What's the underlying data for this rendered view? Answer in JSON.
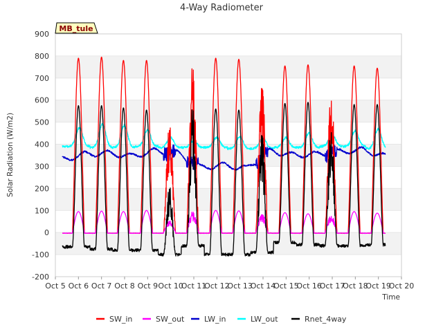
{
  "chart_data": {
    "type": "line",
    "title": "4-Way Radiometer",
    "xlabel": "Time",
    "ylabel": "Solar Radiation (W/m2)",
    "ylim": [
      -200,
      900
    ],
    "xlim": [
      5,
      20
    ],
    "yticks": [
      -200,
      -100,
      0,
      100,
      200,
      300,
      400,
      500,
      600,
      700,
      800,
      900
    ],
    "xticks": [
      5,
      6,
      7,
      8,
      9,
      10,
      11,
      12,
      13,
      14,
      15,
      16,
      17,
      18,
      19,
      20
    ],
    "xtick_labels": [
      "Oct 5",
      "Oct 6",
      "Oct 7",
      "Oct 8",
      "Oct 9",
      "Oct 10",
      "Oct 11",
      "Oct 12",
      "Oct 13",
      "Oct 14",
      "Oct 15",
      "Oct 16",
      "Oct 17",
      "Oct 18",
      "Oct 19",
      "Oct 20"
    ],
    "site_label": "MB_tule",
    "legend_position": "bottom-center",
    "data_start_day": 5.3,
    "data_end_day": 19.3,
    "daily_peak_days": [
      6.0,
      7.0,
      7.95,
      8.95,
      9.95,
      10.95,
      11.95,
      12.95,
      13.95,
      14.95,
      15.95,
      16.95,
      17.95,
      18.95
    ],
    "series": [
      {
        "name": "SW_in",
        "color": "#ff0000",
        "night": -3,
        "daily_peaks": [
          790,
          795,
          780,
          780,
          500,
          760,
          790,
          785,
          690,
          755,
          760,
          650,
          755,
          745
        ]
      },
      {
        "name": "SW_out",
        "color": "#ff00ff",
        "night": -3,
        "daily_peaks": [
          95,
          97,
          95,
          100,
          55,
          95,
          100,
          98,
          85,
          90,
          85,
          80,
          95,
          88
        ]
      },
      {
        "name": "LW_in",
        "color": "#0000cd",
        "baseline": [
          330,
          355,
          360,
          345,
          370,
          360,
          295,
          305,
          290,
          370,
          350,
          355,
          365,
          375,
          345
        ]
      },
      {
        "name": "LW_out",
        "color": "#00ffff",
        "baseline": [
          390,
          385,
          385,
          390,
          385,
          385,
          385,
          380,
          380,
          385,
          385,
          390,
          390,
          380,
          390
        ],
        "daily_peaks": [
          475,
          490,
          485,
          465,
          430,
          415,
          430,
          435,
          430,
          430,
          450,
          445,
          460,
          470
        ]
      },
      {
        "name": "Rnet_4way",
        "color": "#000000",
        "night": [
          -65,
          -75,
          -80,
          -80,
          -100,
          -60,
          -100,
          -100,
          -90,
          -45,
          -55,
          -60,
          -60,
          -55
        ],
        "daily_peaks": [
          575,
          575,
          565,
          555,
          220,
          575,
          560,
          555,
          470,
          585,
          590,
          500,
          580,
          580
        ]
      }
    ]
  }
}
